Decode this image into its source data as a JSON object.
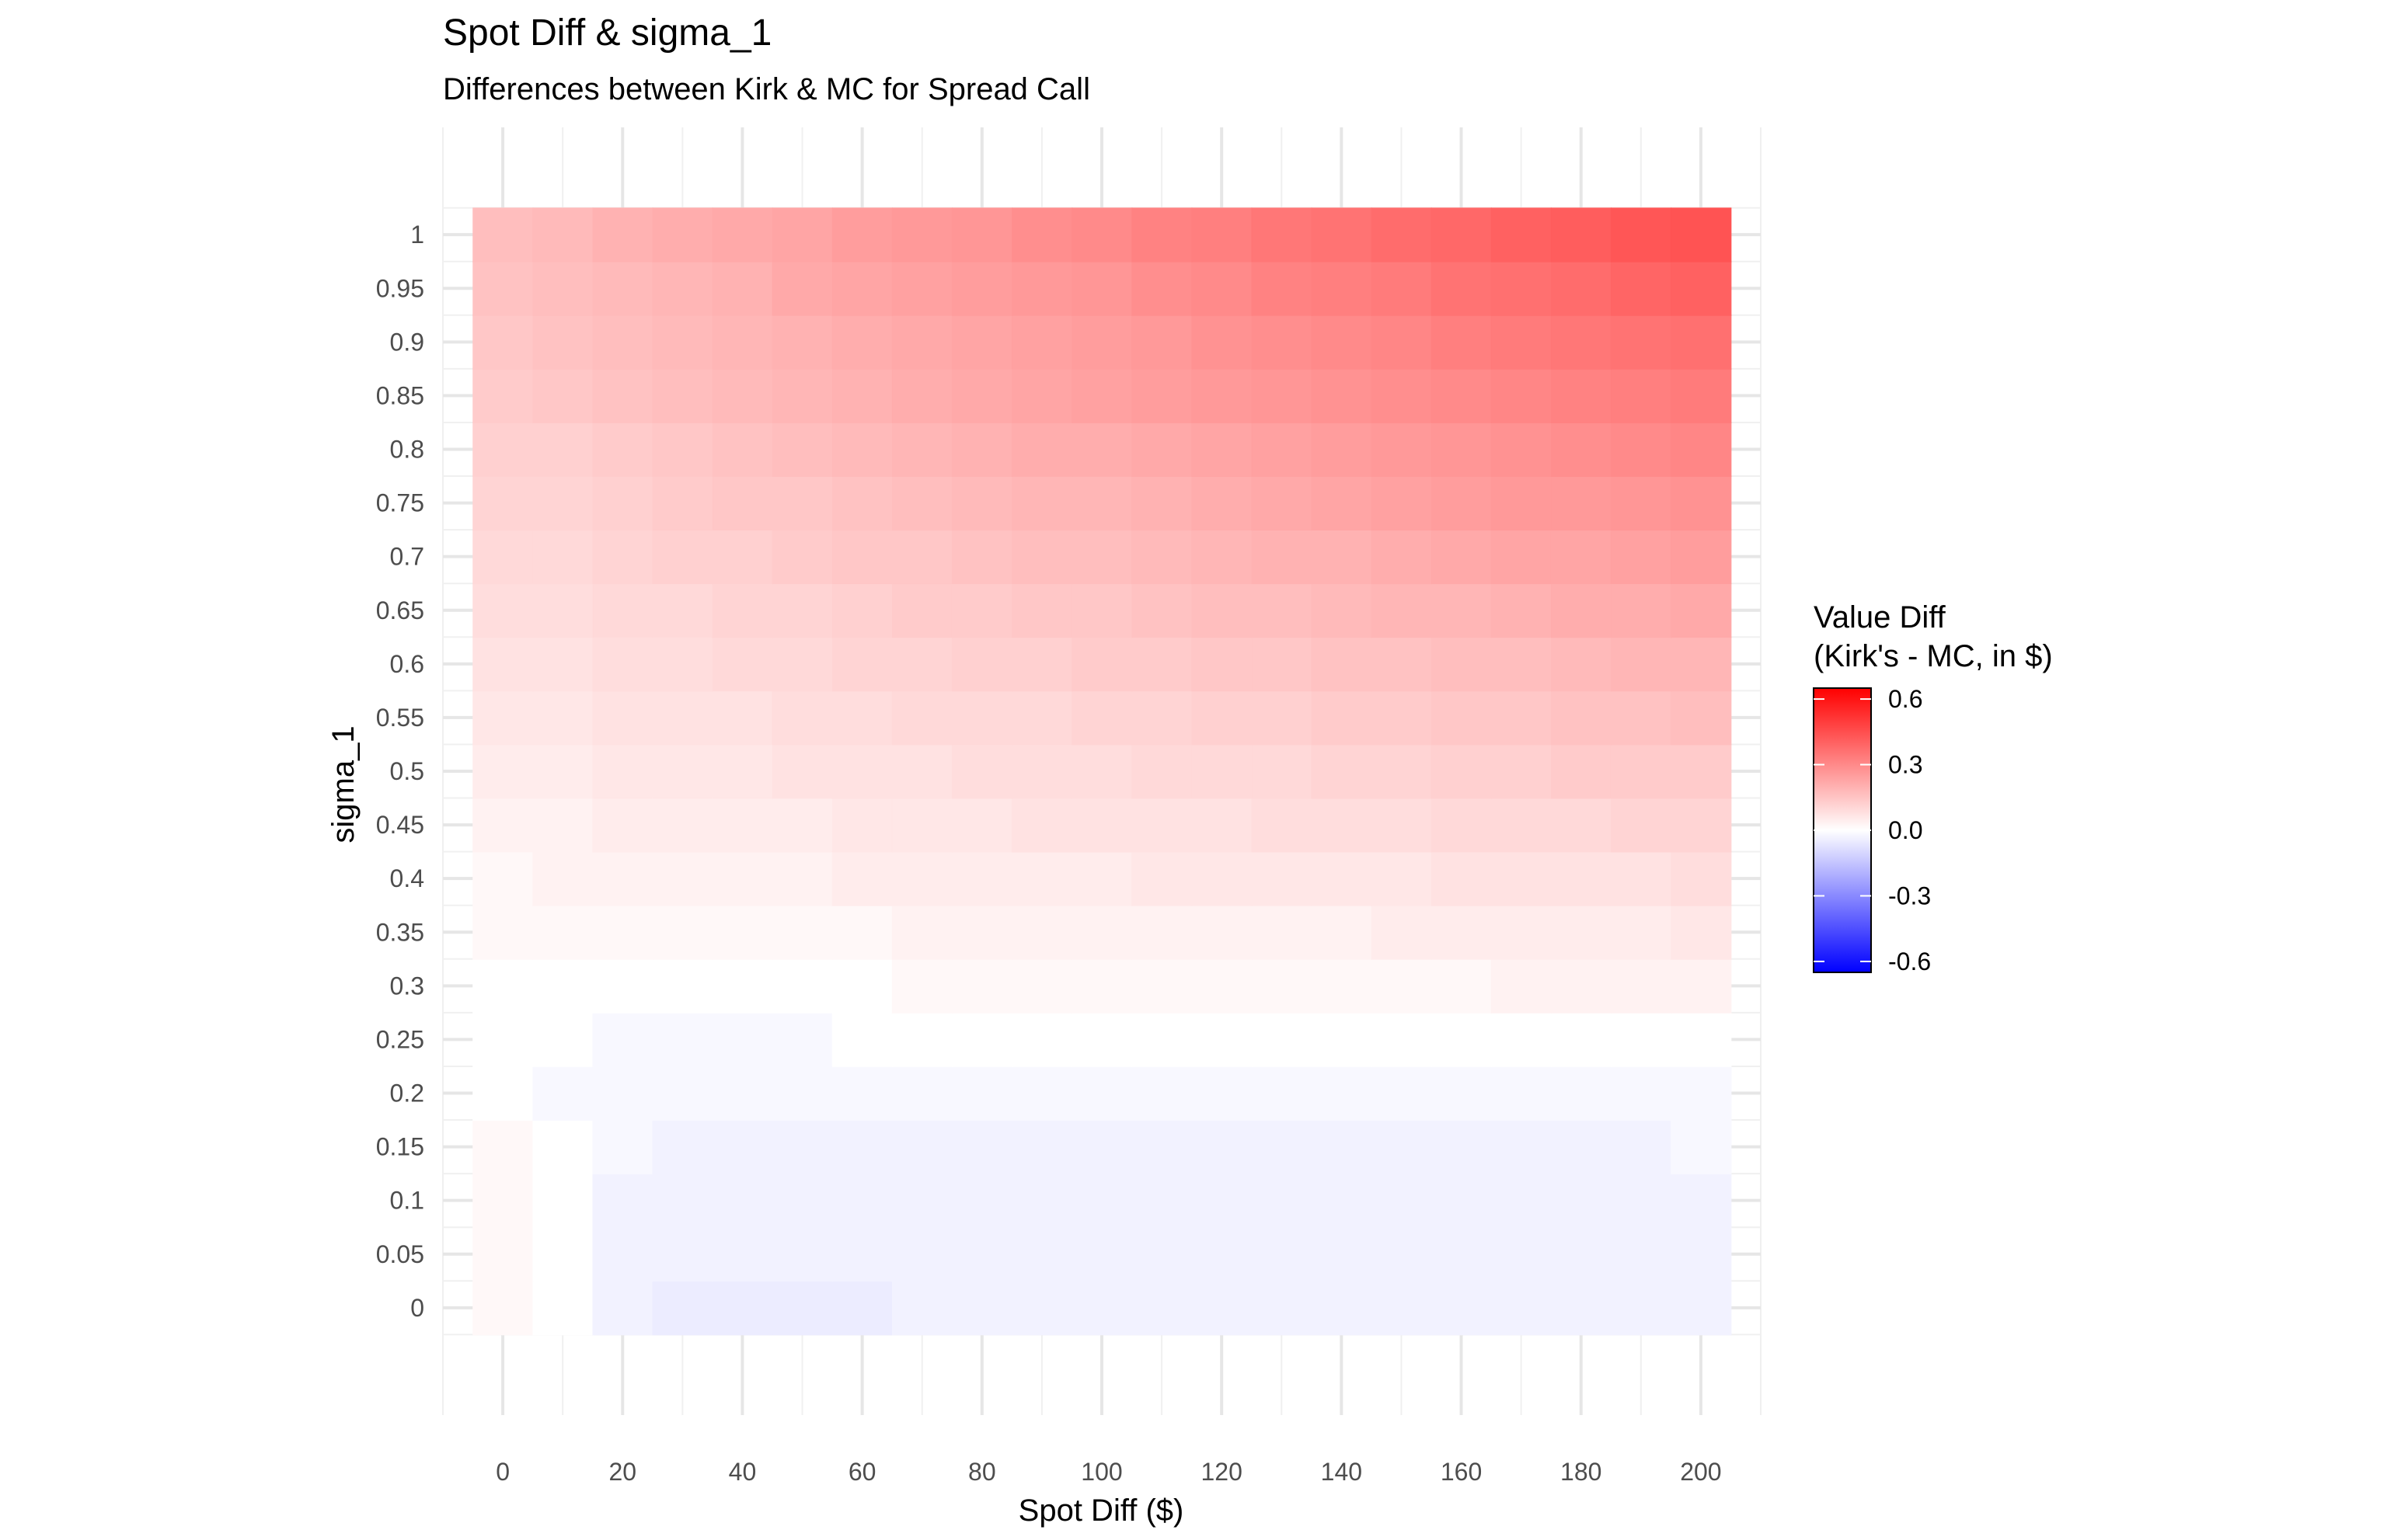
{
  "chart_data": {
    "type": "heatmap",
    "title": "Spot Diff & sigma_1",
    "subtitle": "Differences between Kirk & MC for Spread Call",
    "xlabel": "Spot Diff ($)",
    "ylabel": "sigma_1",
    "x": [
      0,
      10,
      20,
      30,
      40,
      50,
      60,
      70,
      80,
      90,
      100,
      110,
      120,
      130,
      140,
      150,
      160,
      170,
      180,
      190,
      200
    ],
    "y": [
      0,
      0.05,
      0.1,
      0.15,
      0.2,
      0.25,
      0.3,
      0.35,
      0.4,
      0.45,
      0.5,
      0.55,
      0.6,
      0.65,
      0.7,
      0.75,
      0.8,
      0.85,
      0.9,
      0.95,
      1
    ],
    "x_ticks": [
      0,
      20,
      40,
      60,
      80,
      100,
      120,
      140,
      160,
      180,
      200
    ],
    "y_ticks": [
      0,
      0.05,
      0.1,
      0.15,
      0.2,
      0.25,
      0.3,
      0.35,
      0.4,
      0.45,
      0.5,
      0.55,
      0.6,
      0.65,
      0.7,
      0.75,
      0.8,
      0.85,
      0.9,
      0.95,
      1
    ],
    "x_tick_labels": [
      "0",
      "20",
      "40",
      "60",
      "80",
      "100",
      "120",
      "140",
      "160",
      "180",
      "200"
    ],
    "y_tick_labels": [
      "0",
      "0.05",
      "0.1",
      "0.15",
      "0.2",
      "0.25",
      "0.3",
      "0.35",
      "0.4",
      "0.45",
      "0.5",
      "0.55",
      "0.6",
      "0.65",
      "0.7",
      "0.75",
      "0.8",
      "0.85",
      "0.9",
      "0.95",
      "1"
    ],
    "xlim": [
      -10,
      210
    ],
    "ylim": [
      -0.1,
      1.1
    ],
    "grid": true,
    "values": [
      [
        0.01,
        0.0,
        -0.02,
        -0.03,
        -0.03,
        -0.03,
        -0.03,
        -0.02,
        -0.02,
        -0.02,
        -0.02,
        -0.02,
        -0.02,
        -0.02,
        -0.02,
        -0.02,
        -0.02,
        -0.02,
        -0.02,
        -0.02,
        -0.02
      ],
      [
        0.01,
        0.0,
        -0.02,
        -0.02,
        -0.02,
        -0.02,
        -0.02,
        -0.02,
        -0.02,
        -0.02,
        -0.02,
        -0.02,
        -0.02,
        -0.02,
        -0.02,
        -0.02,
        -0.02,
        -0.02,
        -0.02,
        -0.02,
        -0.02
      ],
      [
        0.01,
        0.0,
        -0.02,
        -0.02,
        -0.02,
        -0.02,
        -0.02,
        -0.02,
        -0.02,
        -0.02,
        -0.02,
        -0.02,
        -0.02,
        -0.02,
        -0.02,
        -0.02,
        -0.02,
        -0.02,
        -0.02,
        -0.02,
        -0.02
      ],
      [
        0.01,
        0.0,
        -0.01,
        -0.02,
        -0.02,
        -0.02,
        -0.02,
        -0.02,
        -0.02,
        -0.02,
        -0.02,
        -0.02,
        -0.02,
        -0.02,
        -0.02,
        -0.02,
        -0.02,
        -0.02,
        -0.02,
        -0.02,
        -0.01
      ],
      [
        0.0,
        -0.01,
        -0.01,
        -0.01,
        -0.01,
        -0.01,
        -0.01,
        -0.01,
        -0.01,
        -0.01,
        -0.01,
        -0.01,
        -0.01,
        -0.01,
        -0.01,
        -0.01,
        -0.01,
        -0.01,
        -0.01,
        -0.01,
        -0.01
      ],
      [
        0.0,
        0.0,
        -0.01,
        -0.01,
        -0.01,
        -0.01,
        0.0,
        0.0,
        0.0,
        0.0,
        0.0,
        0.0,
        0.0,
        0.0,
        0.0,
        0.0,
        0.0,
        0.0,
        0.0,
        0.0,
        0.0
      ],
      [
        0.0,
        0.0,
        0.0,
        0.0,
        0.0,
        0.0,
        0.0,
        0.01,
        0.01,
        0.01,
        0.01,
        0.01,
        0.01,
        0.01,
        0.01,
        0.01,
        0.01,
        0.02,
        0.02,
        0.02,
        0.02
      ],
      [
        0.01,
        0.01,
        0.01,
        0.01,
        0.01,
        0.01,
        0.01,
        0.02,
        0.02,
        0.02,
        0.02,
        0.02,
        0.02,
        0.02,
        0.02,
        0.03,
        0.03,
        0.03,
        0.03,
        0.03,
        0.04
      ],
      [
        0.01,
        0.02,
        0.02,
        0.02,
        0.02,
        0.02,
        0.03,
        0.03,
        0.03,
        0.03,
        0.03,
        0.04,
        0.04,
        0.04,
        0.04,
        0.04,
        0.05,
        0.05,
        0.05,
        0.05,
        0.06
      ],
      [
        0.02,
        0.02,
        0.03,
        0.03,
        0.03,
        0.03,
        0.04,
        0.04,
        0.04,
        0.05,
        0.05,
        0.05,
        0.05,
        0.06,
        0.06,
        0.06,
        0.07,
        0.07,
        0.07,
        0.08,
        0.08
      ],
      [
        0.03,
        0.03,
        0.04,
        0.04,
        0.04,
        0.05,
        0.05,
        0.05,
        0.06,
        0.06,
        0.06,
        0.07,
        0.07,
        0.07,
        0.08,
        0.08,
        0.09,
        0.09,
        0.1,
        0.1,
        0.1
      ],
      [
        0.04,
        0.04,
        0.05,
        0.05,
        0.05,
        0.06,
        0.06,
        0.07,
        0.07,
        0.07,
        0.08,
        0.08,
        0.09,
        0.09,
        0.1,
        0.1,
        0.11,
        0.11,
        0.12,
        0.12,
        0.13
      ],
      [
        0.05,
        0.05,
        0.06,
        0.06,
        0.07,
        0.07,
        0.08,
        0.08,
        0.09,
        0.09,
        0.1,
        0.1,
        0.11,
        0.11,
        0.12,
        0.12,
        0.13,
        0.13,
        0.14,
        0.15,
        0.15
      ],
      [
        0.06,
        0.06,
        0.07,
        0.07,
        0.08,
        0.08,
        0.09,
        0.1,
        0.1,
        0.11,
        0.11,
        0.12,
        0.13,
        0.13,
        0.14,
        0.15,
        0.15,
        0.16,
        0.17,
        0.17,
        0.18
      ],
      [
        0.07,
        0.07,
        0.08,
        0.09,
        0.09,
        0.1,
        0.11,
        0.11,
        0.12,
        0.13,
        0.13,
        0.14,
        0.15,
        0.16,
        0.16,
        0.17,
        0.18,
        0.19,
        0.19,
        0.2,
        0.21
      ],
      [
        0.08,
        0.08,
        0.09,
        0.1,
        0.11,
        0.11,
        0.12,
        0.13,
        0.14,
        0.15,
        0.15,
        0.16,
        0.17,
        0.18,
        0.19,
        0.2,
        0.21,
        0.22,
        0.22,
        0.23,
        0.24
      ],
      [
        0.09,
        0.09,
        0.1,
        0.11,
        0.12,
        0.13,
        0.14,
        0.15,
        0.16,
        0.17,
        0.17,
        0.18,
        0.19,
        0.2,
        0.21,
        0.22,
        0.23,
        0.24,
        0.25,
        0.26,
        0.27
      ],
      [
        0.1,
        0.11,
        0.12,
        0.13,
        0.14,
        0.15,
        0.16,
        0.17,
        0.18,
        0.19,
        0.2,
        0.21,
        0.22,
        0.23,
        0.24,
        0.25,
        0.26,
        0.27,
        0.28,
        0.29,
        0.3
      ],
      [
        0.11,
        0.12,
        0.13,
        0.14,
        0.15,
        0.16,
        0.17,
        0.18,
        0.19,
        0.2,
        0.21,
        0.22,
        0.24,
        0.25,
        0.26,
        0.27,
        0.29,
        0.3,
        0.31,
        0.32,
        0.33
      ],
      [
        0.12,
        0.13,
        0.14,
        0.15,
        0.16,
        0.18,
        0.19,
        0.2,
        0.21,
        0.22,
        0.23,
        0.25,
        0.26,
        0.28,
        0.29,
        0.3,
        0.32,
        0.33,
        0.34,
        0.36,
        0.37
      ],
      [
        0.13,
        0.14,
        0.16,
        0.17,
        0.18,
        0.19,
        0.21,
        0.22,
        0.23,
        0.25,
        0.26,
        0.28,
        0.29,
        0.31,
        0.32,
        0.34,
        0.35,
        0.37,
        0.38,
        0.4,
        0.41
      ]
    ],
    "legend": {
      "title_line1": "Value Diff",
      "title_line2": "(Kirk's - MC, in $)",
      "ticks": [
        0.6,
        0.3,
        0.0,
        -0.3,
        -0.6
      ],
      "tick_labels": [
        "0.6",
        "0.3",
        "0.0",
        "-0.3",
        "-0.6"
      ],
      "range": [
        -0.65,
        0.65
      ],
      "placement": "right"
    },
    "colors": {
      "low": "#0000ff",
      "mid": "#ffffff",
      "high": "#ff0000"
    }
  }
}
